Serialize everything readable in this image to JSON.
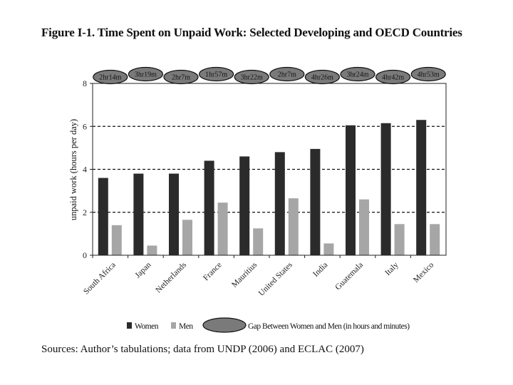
{
  "title": "Figure I-1. Time Spent on Unpaid Work: Selected Developing and OECD Countries",
  "source": "Sources: Author’s tabulations; data from UNDP (2006) and ECLAC (2007)",
  "chart_data": {
    "type": "bar",
    "ylabel": "unpaid work (hours per day)",
    "ylim": [
      0,
      8
    ],
    "yticks": [
      0,
      2,
      4,
      6,
      8
    ],
    "grid": "dashed horizontal lines at 2, 4, 6",
    "categories": [
      "South Africa",
      "Japan",
      "Netherlands",
      "France",
      "Mauritius",
      "United States",
      "India",
      "Guatemala",
      "Italy",
      "Mexico"
    ],
    "series": [
      {
        "name": "Women",
        "color": "#2b2b2b",
        "values": [
          3.6,
          3.8,
          3.8,
          4.4,
          4.6,
          4.8,
          4.95,
          6.05,
          6.15,
          6.3
        ]
      },
      {
        "name": "Men",
        "color": "#a6a6a6",
        "values": [
          1.4,
          0.45,
          1.65,
          2.45,
          1.25,
          2.65,
          0.55,
          2.6,
          1.45,
          1.45
        ]
      }
    ],
    "gap_labels": [
      "2hr14m",
      "3hr19m",
      "2hr7m",
      "1hr57m",
      "3hr22m",
      "2hr7m",
      "4hr26m",
      "3hr24m",
      "4hr42m",
      "4hr53m"
    ],
    "gap_legend": "Gap Between Women and Men (in hours and minutes)",
    "legend_placement": "bottom"
  }
}
